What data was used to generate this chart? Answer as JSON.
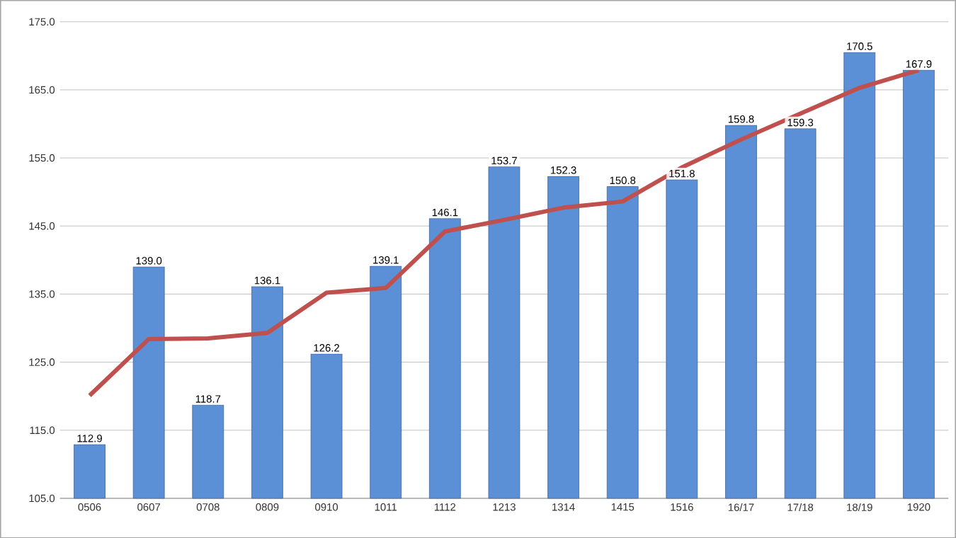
{
  "chart_data": {
    "type": "bar",
    "categories": [
      "0506",
      "0607",
      "0708",
      "0809",
      "0910",
      "1011",
      "1112",
      "1213",
      "1314",
      "1415",
      "1516",
      "16/17",
      "17/18",
      "18/19",
      "1920"
    ],
    "series": [
      {
        "color": "#5b8fd6",
        "values": [
          112.9,
          139.0,
          118.7,
          136.1,
          126.2,
          139.1,
          146.1,
          153.7,
          152.3,
          150.8,
          151.8,
          159.8,
          159.3,
          170.5,
          167.9
        ],
        "value_labels": [
          "112.9",
          "139.0",
          "118.7",
          "136.1",
          "126.2",
          "139.1",
          "146.1",
          "153.7",
          "152.3",
          "150.8",
          "151.8",
          "159.8",
          "159.3",
          "170.5",
          "167.9"
        ]
      },
      {
        "type": "line",
        "color": "#c0504d",
        "values": [
          120.1,
          128.4,
          128.5,
          129.3,
          135.2,
          135.9,
          144.2,
          145.9,
          147.7,
          148.6,
          153.6,
          157.7,
          161.5,
          165.3,
          167.9
        ]
      }
    ],
    "ylim": [
      105,
      175
    ],
    "yticks": [
      {
        "value": 105,
        "label": "105.0"
      },
      {
        "value": 115,
        "label": "115.0"
      },
      {
        "value": 125,
        "label": "125.0"
      },
      {
        "value": 135,
        "label": "135.0"
      },
      {
        "value": 145,
        "label": "145.0"
      },
      {
        "value": 155,
        "label": "155.0"
      },
      {
        "value": 165,
        "label": "165.0"
      },
      {
        "value": 175,
        "label": "175.0"
      }
    ],
    "grid": "y"
  }
}
